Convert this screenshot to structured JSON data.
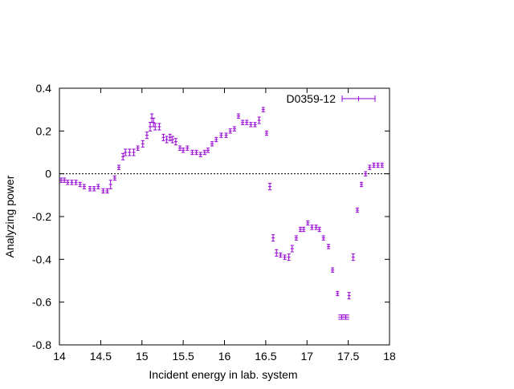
{
  "chart_data": {
    "type": "scatter",
    "title": "",
    "xlabel": "Incident energy in lab. system",
    "ylabel": "Analyzing power",
    "xlim": [
      14,
      18
    ],
    "ylim": [
      -0.8,
      0.4
    ],
    "xticks": [
      14,
      14.5,
      15,
      15.5,
      16,
      16.5,
      17,
      17.5,
      18
    ],
    "xtick_labels": [
      "14",
      "14.5",
      "15",
      "15.5",
      "16",
      "16.5",
      "17",
      "17.5",
      "18"
    ],
    "yticks": [
      -0.8,
      -0.6,
      -0.4,
      -0.2,
      0,
      0.2,
      0.4
    ],
    "ytick_labels": [
      "-0.8",
      "-0.6",
      "-0.4",
      "-0.2",
      "0",
      "0.2",
      "0.4"
    ],
    "grid": false,
    "zero_line": true,
    "legend_position": "top-right",
    "series": [
      {
        "name": "D0359-12",
        "color": "#9400d3",
        "marker": "errorbar",
        "x": [
          14.02,
          14.06,
          14.1,
          14.15,
          14.2,
          14.25,
          14.3,
          14.37,
          14.42,
          14.47,
          14.53,
          14.58,
          14.62,
          14.67,
          14.72,
          14.77,
          14.8,
          14.85,
          14.9,
          14.95,
          15.01,
          15.06,
          15.1,
          15.12,
          15.14,
          15.16,
          15.21,
          15.26,
          15.3,
          15.34,
          15.37,
          15.41,
          15.46,
          15.5,
          15.55,
          15.61,
          15.66,
          15.71,
          15.76,
          15.8,
          15.85,
          15.9,
          15.96,
          16.02,
          16.07,
          16.12,
          16.17,
          16.22,
          16.27,
          16.32,
          16.37,
          16.42,
          16.47,
          16.51,
          16.55,
          16.59,
          16.63,
          16.68,
          16.73,
          16.78,
          16.82,
          16.87,
          16.92,
          16.96,
          17.01,
          17.06,
          17.11,
          17.15,
          17.2,
          17.26,
          17.31,
          17.37,
          17.42,
          17.47,
          17.51,
          17.56,
          17.61,
          17.66,
          17.71,
          17.76,
          17.81,
          17.86,
          17.91
        ],
        "y": [
          -0.03,
          -0.03,
          -0.04,
          -0.04,
          -0.04,
          -0.05,
          -0.06,
          -0.07,
          -0.07,
          -0.06,
          -0.08,
          -0.08,
          -0.05,
          -0.02,
          0.03,
          0.08,
          0.1,
          0.1,
          0.1,
          0.12,
          0.14,
          0.18,
          0.22,
          0.26,
          0.24,
          0.22,
          0.22,
          0.17,
          0.16,
          0.17,
          0.16,
          0.15,
          0.12,
          0.11,
          0.12,
          0.1,
          0.1,
          0.09,
          0.1,
          0.11,
          0.14,
          0.16,
          0.18,
          0.18,
          0.2,
          0.21,
          0.27,
          0.24,
          0.24,
          0.23,
          0.23,
          0.25,
          0.3,
          0.19,
          -0.06,
          -0.3,
          -0.37,
          -0.38,
          -0.39,
          -0.39,
          -0.35,
          -0.3,
          -0.26,
          -0.26,
          -0.23,
          -0.25,
          -0.25,
          -0.26,
          -0.3,
          -0.34,
          -0.45,
          -0.56,
          -0.67,
          -0.67,
          -0.57,
          -0.39,
          -0.17,
          -0.05,
          0.0,
          0.03,
          0.04,
          0.04,
          0.04
        ],
        "err": [
          0.01,
          0.01,
          0.01,
          0.01,
          0.01,
          0.01,
          0.01,
          0.01,
          0.01,
          0.01,
          0.01,
          0.01,
          0.02,
          0.01,
          0.01,
          0.015,
          0.015,
          0.015,
          0.015,
          0.01,
          0.015,
          0.015,
          0.02,
          0.02,
          0.02,
          0.015,
          0.015,
          0.015,
          0.015,
          0.015,
          0.015,
          0.015,
          0.01,
          0.01,
          0.01,
          0.01,
          0.01,
          0.01,
          0.01,
          0.01,
          0.01,
          0.01,
          0.01,
          0.01,
          0.01,
          0.01,
          0.01,
          0.01,
          0.01,
          0.01,
          0.01,
          0.015,
          0.01,
          0.01,
          0.015,
          0.015,
          0.015,
          0.01,
          0.01,
          0.015,
          0.015,
          0.01,
          0.01,
          0.01,
          0.01,
          0.01,
          0.01,
          0.01,
          0.01,
          0.01,
          0.01,
          0.01,
          0.01,
          0.01,
          0.015,
          0.015,
          0.01,
          0.01,
          0.01,
          0.01,
          0.01,
          0.01,
          0.01
        ],
        "xerr": [
          0.02,
          0.02,
          0.02,
          0.02,
          0.02,
          0.02,
          0.02,
          0.02,
          0.02,
          0.02,
          0.02,
          0.02,
          0.02,
          0.02,
          0.02,
          0.02,
          0.02,
          0.02,
          0.02,
          0.02,
          0.02,
          0.02,
          0.02,
          0.02,
          0.02,
          0.02,
          0.02,
          0.02,
          0.02,
          0.02,
          0.02,
          0.02,
          0.02,
          0.02,
          0.02,
          0.02,
          0.02,
          0.02,
          0.02,
          0.02,
          0.02,
          0.02,
          0.02,
          0.02,
          0.02,
          0.02,
          0.02,
          0.02,
          0.02,
          0.02,
          0.02,
          0.02,
          0.02,
          0.02,
          0.02,
          0.02,
          0.02,
          0.02,
          0.02,
          0.02,
          0.02,
          0.02,
          0.02,
          0.02,
          0.02,
          0.02,
          0.02,
          0.02,
          0.02,
          0.02,
          0.02,
          0.02,
          0.04,
          0.04,
          0.02,
          0.02,
          0.02,
          0.02,
          0.02,
          0.02,
          0.02,
          0.02,
          0.02
        ]
      }
    ]
  }
}
